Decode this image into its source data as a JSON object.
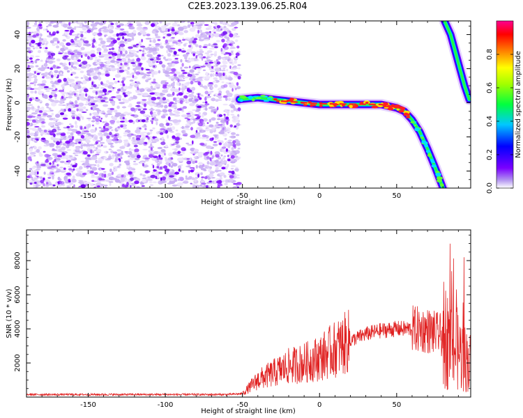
{
  "title": "C2E3.2023.139.06.25.R04",
  "chart_data": [
    {
      "type": "heatmap",
      "xlabel": "Height of straight line (km)",
      "ylabel": "Frequency (Hz)",
      "xlim": [
        -190,
        98
      ],
      "ylim": [
        -50,
        48
      ],
      "x_ticks": [
        -150,
        -100,
        -50,
        0,
        50
      ],
      "y_ticks": [
        -40,
        -20,
        0,
        20,
        40
      ],
      "colorbar": {
        "label": "Normalized spectral amplitude",
        "range": [
          0.0,
          1.0
        ],
        "ticks": [
          0.0,
          0.2,
          0.4,
          0.6,
          0.8
        ]
      },
      "noise_region_x": [
        -190,
        -52
      ],
      "signal_trace": {
        "x": [
          -52,
          -40,
          -30,
          -20,
          -10,
          0,
          10,
          20,
          30,
          40,
          45,
          50,
          55,
          60,
          65,
          70,
          75,
          80
        ],
        "y": [
          2,
          3,
          2,
          1,
          0,
          -1,
          -1,
          -1,
          -1,
          -1,
          -2,
          -3,
          -5,
          -10,
          -17,
          -27,
          -38,
          -50
        ]
      },
      "aliased_trace": {
        "x": [
          81,
          85,
          88,
          91,
          94,
          97
        ],
        "y": [
          48,
          40,
          30,
          20,
          10,
          2
        ]
      }
    },
    {
      "type": "line",
      "xlabel": "Height of straight line (km)",
      "ylabel": "SNR (10 * v/v)",
      "xlim": [
        -190,
        98
      ],
      "ylim": [
        0,
        9800
      ],
      "x_ticks": [
        -150,
        -100,
        -50,
        0,
        50
      ],
      "y_ticks": [
        2000,
        4000,
        6000,
        8000
      ],
      "series_color": "#e02020",
      "envelope": {
        "x": [
          -190,
          -60,
          -50,
          -45,
          -40,
          -30,
          -20,
          -10,
          0,
          10,
          20,
          30,
          40,
          50,
          60,
          70,
          80,
          85,
          90,
          95,
          98
        ],
        "y": [
          150,
          150,
          200,
          600,
          1000,
          1400,
          1800,
          2000,
          2300,
          2800,
          3300,
          3700,
          3900,
          4000,
          4000,
          3900,
          3600,
          3200,
          2700,
          2200,
          2000
        ]
      }
    }
  ]
}
